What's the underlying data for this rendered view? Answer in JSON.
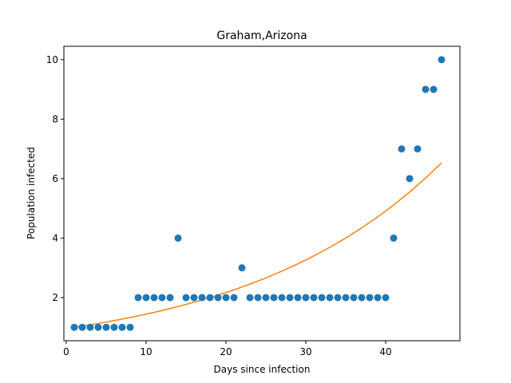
{
  "chart_data": {
    "type": "scatter",
    "title": "Graham,Arizona",
    "xlabel": "Days since infection",
    "ylabel": "Population infected",
    "xlim": [
      -0.3,
      49.3
    ],
    "ylim": [
      0.55,
      10.45
    ],
    "x_ticks": [
      0,
      10,
      20,
      30,
      40
    ],
    "y_ticks": [
      2,
      4,
      6,
      8,
      10
    ],
    "grid": false,
    "series": [
      {
        "type": "scatter",
        "color": "#1f77b4",
        "x": [
          1,
          2,
          3,
          4,
          5,
          6,
          7,
          8,
          9,
          10,
          11,
          12,
          13,
          14,
          15,
          16,
          17,
          18,
          19,
          20,
          21,
          22,
          23,
          24,
          25,
          26,
          27,
          28,
          29,
          30,
          31,
          32,
          33,
          34,
          35,
          36,
          37,
          38,
          39,
          40,
          41,
          42,
          43,
          44,
          45,
          46,
          47
        ],
        "y": [
          1,
          1,
          1,
          1,
          1,
          1,
          1,
          1,
          2,
          2,
          2,
          2,
          2,
          4,
          2,
          2,
          2,
          2,
          2,
          2,
          2,
          3,
          2,
          2,
          2,
          2,
          2,
          2,
          2,
          2,
          2,
          2,
          2,
          2,
          2,
          2,
          2,
          2,
          2,
          2,
          4,
          7,
          6,
          7,
          9,
          9,
          10
        ]
      },
      {
        "type": "line",
        "color": "#ff7f0e",
        "x": [
          1,
          3,
          5,
          7,
          9,
          11,
          13,
          15,
          17,
          19,
          21,
          23,
          25,
          27,
          29,
          31,
          33,
          35,
          37,
          39,
          41,
          43,
          45,
          47
        ],
        "y": [
          1.0,
          1.085,
          1.177,
          1.277,
          1.386,
          1.503,
          1.631,
          1.77,
          1.92,
          2.084,
          2.261,
          2.453,
          2.661,
          2.888,
          3.133,
          3.4,
          3.689,
          4.002,
          4.343,
          4.712,
          5.113,
          5.547,
          6.019,
          6.53
        ]
      }
    ]
  }
}
